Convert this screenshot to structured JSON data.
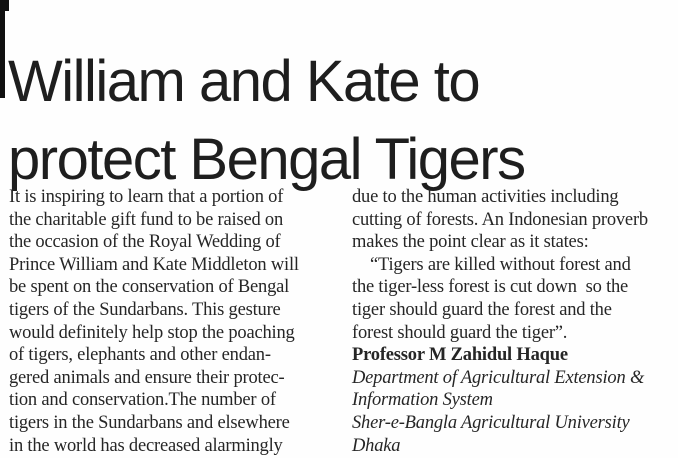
{
  "colors": {
    "paper": "#fefefe",
    "headline_ink": "#1e1e1e",
    "body_ink": "#262626",
    "scan_mark": "#101010"
  },
  "article": {
    "headline_lines": [
      "William and Kate to",
      "protect Bengal Tigers"
    ],
    "left_column_lines": [
      {
        "text": "It is inspiring to learn that a portion of"
      },
      {
        "text": "the charitable gift fund to be raised on"
      },
      {
        "text": "the occasion of the Royal Wedding of"
      },
      {
        "text": "Prince William and Kate Middleton will"
      },
      {
        "text": "be spent on the conservation of Bengal"
      },
      {
        "text": "tigers of the Sundarbans. This gesture"
      },
      {
        "text": "would definitely help stop the poaching"
      },
      {
        "text": "of tigers, elephants and other endan-"
      },
      {
        "text": "gered animals and ensure their protec-"
      },
      {
        "text": "tion and conservation.The number of"
      },
      {
        "text": "tigers in the Sundarbans and elsewhere"
      },
      {
        "text": "in the world has decreased alarmingly"
      }
    ],
    "right_column_lines": [
      {
        "text": "due to the human activities including"
      },
      {
        "text": "cutting of forests. An Indonesian proverb"
      },
      {
        "text": "makes the point clear as it states:"
      },
      {
        "text": "“Tigers are killed without forest and",
        "style": "indent"
      },
      {
        "text": "the tiger-less forest is cut down  so the"
      },
      {
        "text": "tiger should guard the forest and the"
      },
      {
        "text": "forest should guard the tiger”."
      },
      {
        "text": "Professor M Zahidul Haque",
        "style": "bold"
      },
      {
        "text": "Department of Agricultural Extension &",
        "style": "italic"
      },
      {
        "text": "Information System",
        "style": "italic"
      },
      {
        "text": "Sher-e-Bangla Agricultural University",
        "style": "italic"
      },
      {
        "text": "Dhaka",
        "style": "italic"
      }
    ]
  }
}
